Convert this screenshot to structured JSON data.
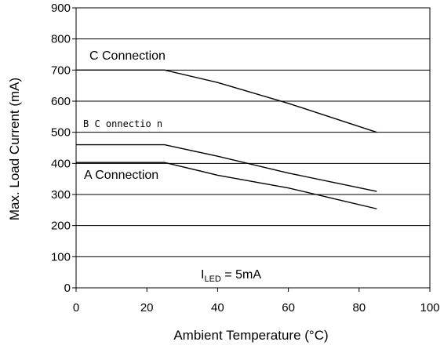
{
  "chart_data": {
    "type": "line",
    "xlabel": "Ambient Temperature (°C)",
    "ylabel": "Max. Load Current (mA)",
    "xlim": [
      0,
      100
    ],
    "ylim": [
      0,
      900
    ],
    "x_ticks": [
      "0",
      "20",
      "40",
      "60",
      "80",
      "100"
    ],
    "y_ticks": [
      "0",
      "100",
      "200",
      "300",
      "400",
      "500",
      "600",
      "700",
      "800",
      "900"
    ],
    "grid": "horizontal",
    "series": [
      {
        "name": "C Connection",
        "x": [
          0,
          25,
          40,
          60,
          85
        ],
        "y": [
          700,
          700,
          660,
          593,
          500
        ]
      },
      {
        "name": "B Connection",
        "x": [
          0,
          25,
          40,
          60,
          85
        ],
        "y": [
          460,
          460,
          423,
          369,
          310
        ]
      },
      {
        "name": "A Connection",
        "x": [
          0,
          25,
          40,
          60,
          85
        ],
        "y": [
          403,
          403,
          362,
          321,
          254
        ]
      }
    ],
    "annotations": {
      "c_label": "C Connection",
      "b_label": "B C onnectio n",
      "a_label": "A Connection",
      "condition_main": "I",
      "condition_sub": "LED",
      "condition_rest": " = 5mA"
    }
  }
}
